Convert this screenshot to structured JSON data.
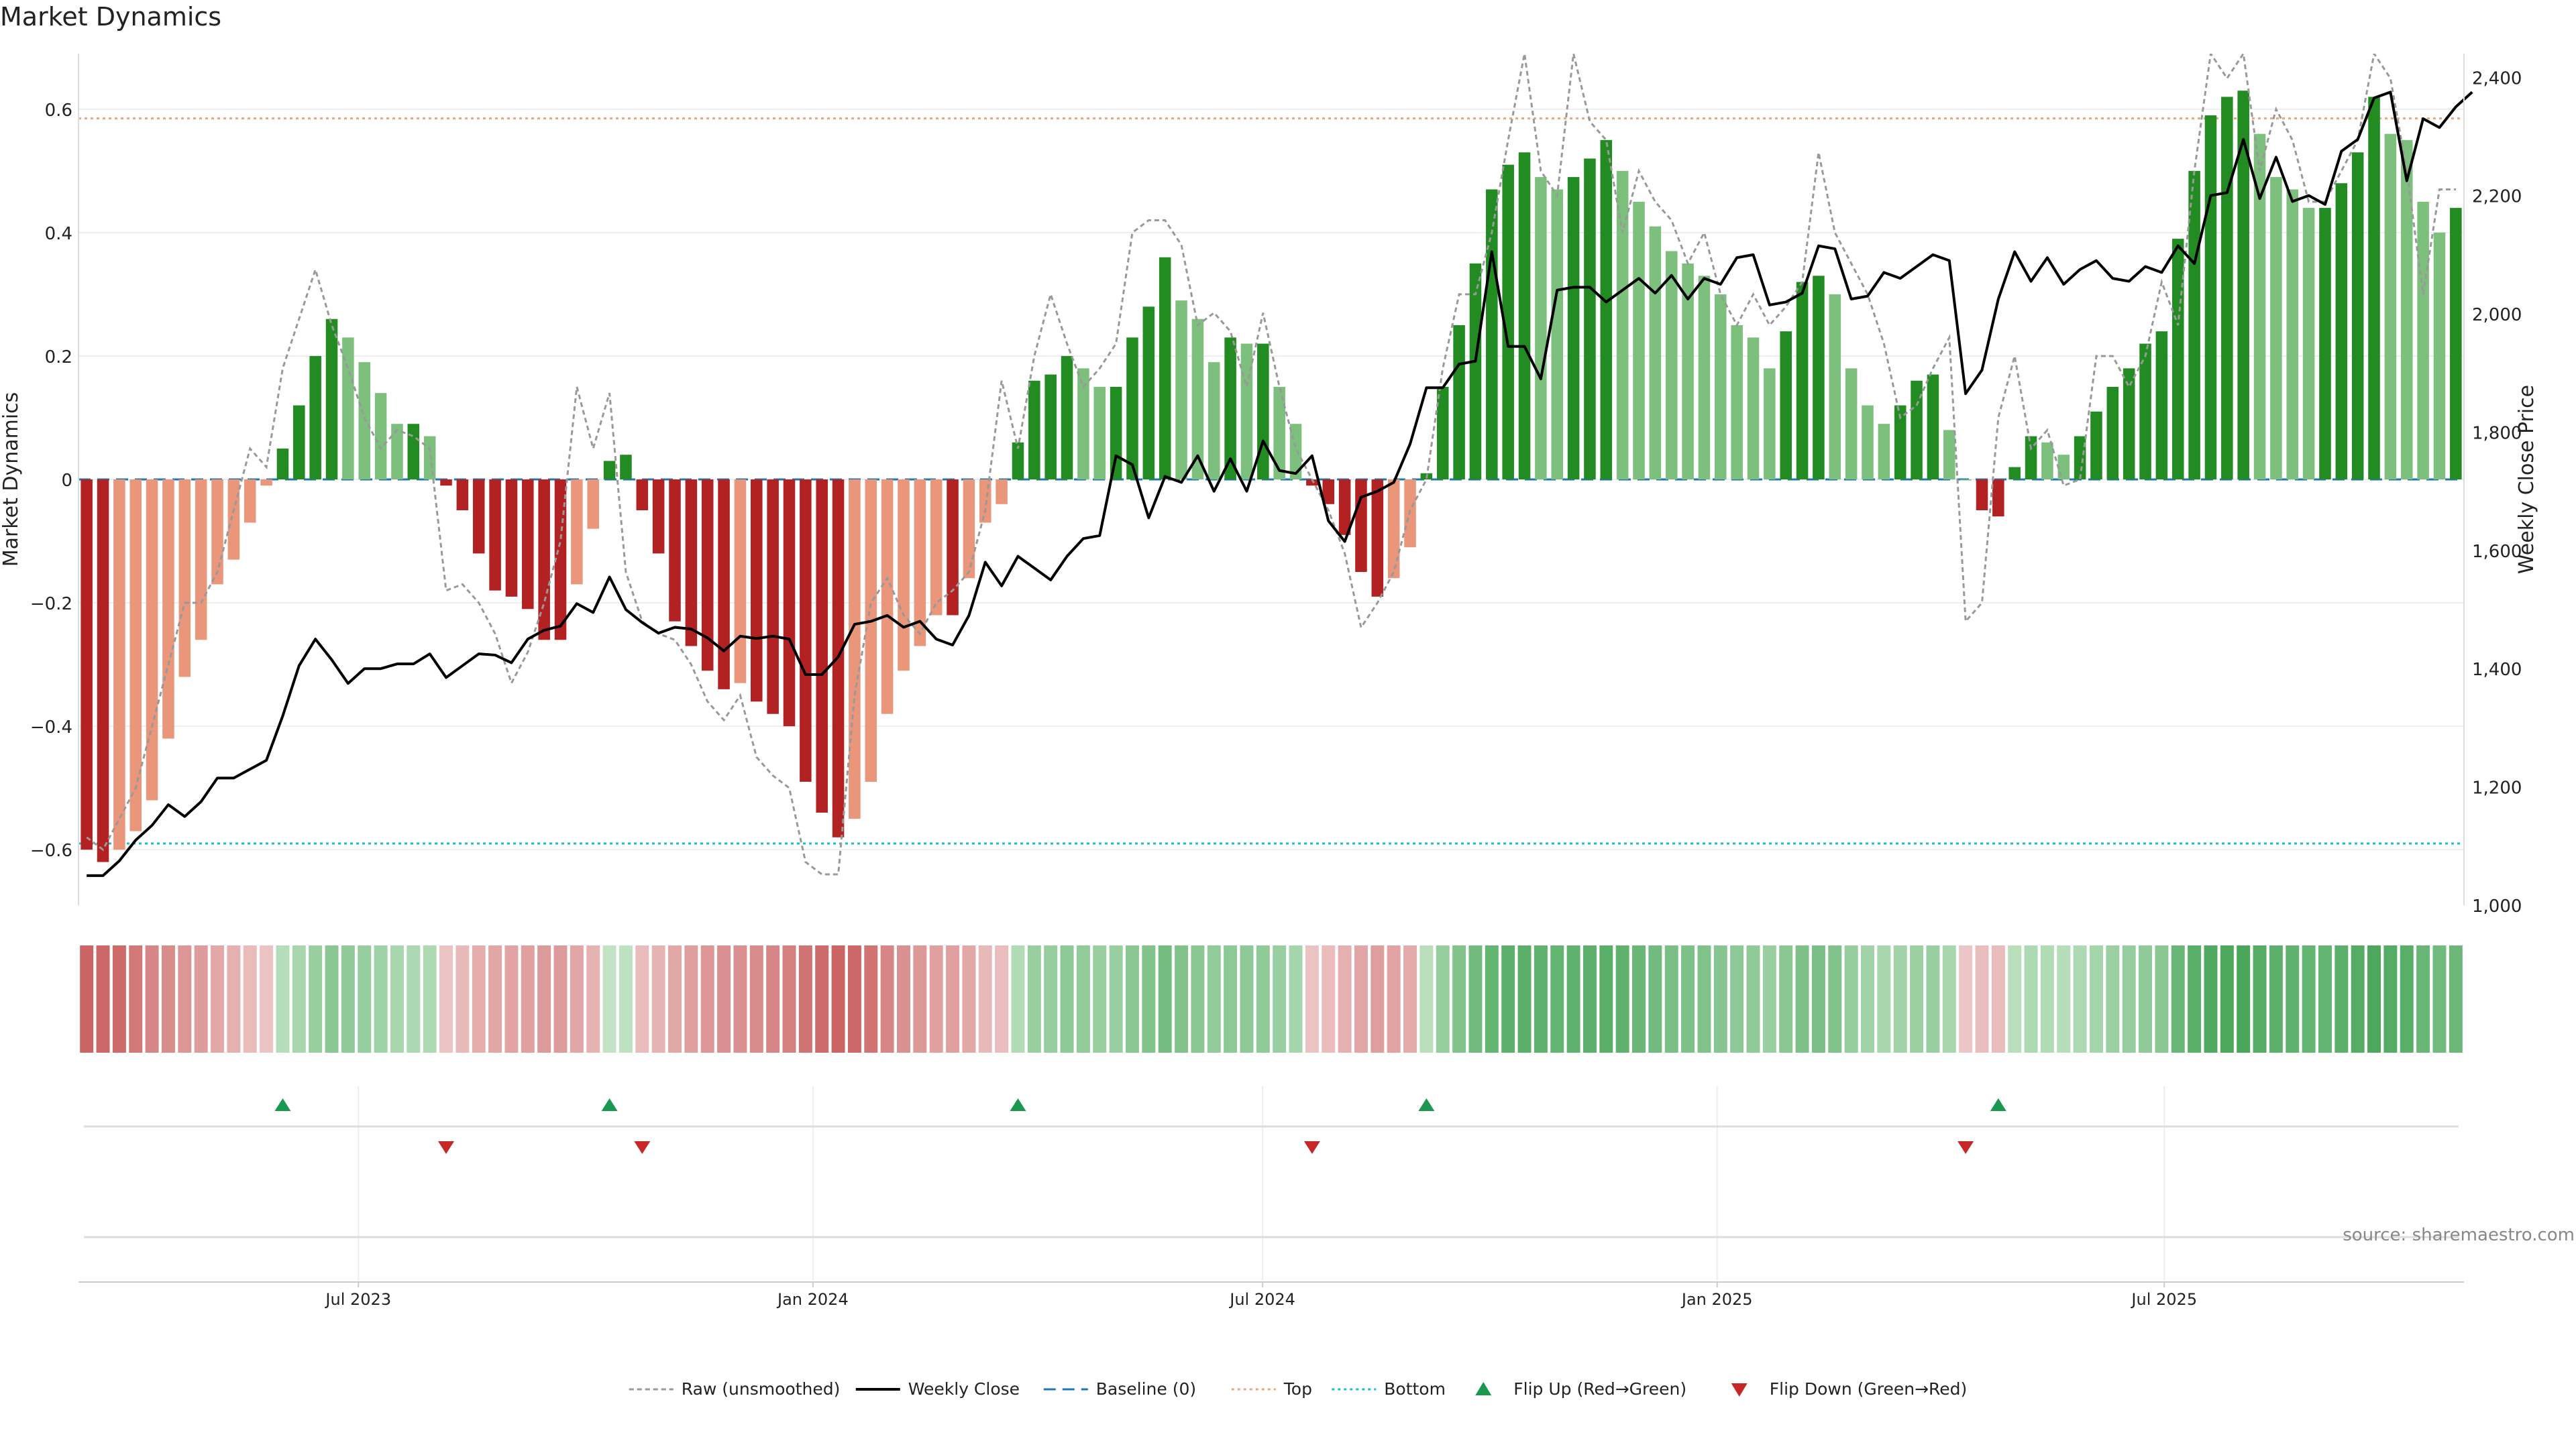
{
  "title": "Market Dynamics",
  "source": "source: sharemaestro.com",
  "colors": {
    "strong_green": "#228b22",
    "light_green": "#7dbf7d",
    "strong_red": "#b22222",
    "light_red": "#e9967a",
    "price_line": "#000000",
    "raw_line": "#999999",
    "baseline": "#1f77b4",
    "top": "#e8a87c",
    "bottom": "#17becf",
    "flip_up": "#1a9850",
    "flip_down": "#c62828"
  },
  "chart_data": {
    "type": "bar",
    "title": "Market Dynamics",
    "ylabel": "Market Dynamics",
    "y2label": "Weekly Close Price",
    "ylim": [
      -0.69,
      0.69
    ],
    "y2lim": [
      1000,
      2440
    ],
    "x_start": "2023-03-13",
    "x_end": "2025-10-27",
    "x_ticks": [
      {
        "label": "Jul 2023",
        "date": "2023-07-01"
      },
      {
        "label": "Jan 2024",
        "date": "2024-01-01"
      },
      {
        "label": "Jul 2024",
        "date": "2024-07-01"
      },
      {
        "label": "Jan 2025",
        "date": "2025-01-01"
      },
      {
        "label": "Jul 2025",
        "date": "2025-07-01"
      }
    ],
    "y_ticks": [
      {
        "v": 0.6,
        "label": "0.6"
      },
      {
        "v": 0.4,
        "label": "0.4"
      },
      {
        "v": 0.2,
        "label": "0.2"
      },
      {
        "v": 0,
        "label": "0"
      },
      {
        "v": -0.2,
        "label": "−0.2"
      },
      {
        "v": -0.4,
        "label": "−0.4"
      },
      {
        "v": -0.6,
        "label": "−0.6"
      }
    ],
    "y2_ticks": [
      {
        "v": 1000,
        "label": "1,000"
      },
      {
        "v": 1200,
        "label": "1,200"
      },
      {
        "v": 1400,
        "label": "1,400"
      },
      {
        "v": 1600,
        "label": "1,600"
      },
      {
        "v": 1800,
        "label": "1,800"
      },
      {
        "v": 2000,
        "label": "2,000"
      },
      {
        "v": 2200,
        "label": "2,200"
      },
      {
        "v": 2400,
        "label": "2,400"
      }
    ],
    "top_level": 0.585,
    "bottom_level": -0.59,
    "market_dynamics": [
      -0.6,
      -0.62,
      -0.6,
      -0.57,
      -0.52,
      -0.42,
      -0.32,
      -0.26,
      -0.17,
      -0.13,
      -0.07,
      -0.01,
      0.05,
      0.12,
      0.2,
      0.26,
      0.23,
      0.19,
      0.14,
      0.09,
      0.09,
      0.07,
      -0.01,
      -0.05,
      -0.12,
      -0.18,
      -0.19,
      -0.21,
      -0.26,
      -0.26,
      -0.17,
      -0.08,
      0.03,
      0.04,
      -0.05,
      -0.12,
      -0.23,
      -0.27,
      -0.31,
      -0.34,
      -0.33,
      -0.36,
      -0.38,
      -0.4,
      -0.49,
      -0.54,
      -0.58,
      -0.55,
      -0.49,
      -0.38,
      -0.31,
      -0.27,
      -0.22,
      -0.22,
      -0.16,
      -0.07,
      -0.04,
      0.06,
      0.16,
      0.17,
      0.2,
      0.18,
      0.15,
      0.15,
      0.23,
      0.28,
      0.36,
      0.29,
      0.26,
      0.19,
      0.23,
      0.22,
      0.22,
      0.15,
      0.09,
      -0.01,
      -0.04,
      -0.09,
      -0.15,
      -0.19,
      -0.16,
      -0.11,
      0.01,
      0.15,
      0.25,
      0.35,
      0.47,
      0.51,
      0.53,
      0.49,
      0.47,
      0.49,
      0.52,
      0.55,
      0.5,
      0.45,
      0.41,
      0.37,
      0.35,
      0.33,
      0.3,
      0.25,
      0.23,
      0.18,
      0.24,
      0.32,
      0.33,
      0.3,
      0.18,
      0.12,
      0.09,
      0.12,
      0.16,
      0.17,
      0.08,
      0.0,
      -0.05,
      -0.06,
      0.02,
      0.07,
      0.06,
      0.04,
      0.07,
      0.11,
      0.15,
      0.18,
      0.22,
      0.24,
      0.39,
      0.5,
      0.59,
      0.62,
      0.63,
      0.56,
      0.49,
      0.47,
      0.44,
      0.44,
      0.48,
      0.53,
      0.62,
      0.56,
      0.55,
      0.45,
      0.4,
      0.44
    ],
    "weekly_close": [
      1050,
      1050,
      1075,
      1110,
      1135,
      1170,
      1150,
      1175,
      1215,
      1215,
      1230,
      1245,
      1320,
      1405,
      1450,
      1415,
      1375,
      1400,
      1400,
      1408,
      1408,
      1425,
      1385,
      1405,
      1425,
      1423,
      1410,
      1450,
      1465,
      1472,
      1510,
      1495,
      1555,
      1500,
      1478,
      1460,
      1470,
      1467,
      1452,
      1430,
      1455,
      1451,
      1455,
      1450,
      1390,
      1390,
      1420,
      1475,
      1480,
      1490,
      1470,
      1480,
      1450,
      1440,
      1490,
      1580,
      1540,
      1590,
      1570,
      1550,
      1590,
      1620,
      1625,
      1760,
      1745,
      1655,
      1725,
      1715,
      1760,
      1700,
      1755,
      1700,
      1785,
      1735,
      1730,
      1760,
      1650,
      1615,
      1690,
      1700,
      1715,
      1780,
      1875,
      1875,
      1915,
      1920,
      2105,
      1945,
      1945,
      1890,
      2040,
      2045,
      2045,
      2020,
      2040,
      2060,
      2035,
      2065,
      2025,
      2060,
      2050,
      2095,
      2100,
      2015,
      2020,
      2035,
      2115,
      2110,
      2025,
      2030,
      2070,
      2060,
      2080,
      2100,
      2090,
      1865,
      1905,
      2025,
      2105,
      2055,
      2095,
      2050,
      2075,
      2090,
      2060,
      2055,
      2080,
      2070,
      2115,
      2085,
      2200,
      2205,
      2295,
      2195,
      2265,
      2190,
      2200,
      2185,
      2275,
      2295,
      2365,
      2375,
      2225,
      2330,
      2315,
      2350,
      2375
    ],
    "raw_unsmoothed": [
      -0.58,
      -0.6,
      -0.55,
      -0.5,
      -0.4,
      -0.3,
      -0.2,
      -0.2,
      -0.15,
      -0.05,
      0.05,
      0.02,
      0.18,
      0.26,
      0.34,
      0.25,
      0.18,
      0.1,
      0.05,
      0.08,
      0.07,
      0.05,
      -0.18,
      -0.17,
      -0.2,
      -0.25,
      -0.33,
      -0.28,
      -0.2,
      -0.1,
      0.15,
      0.05,
      0.14,
      -0.15,
      -0.23,
      -0.25,
      -0.26,
      -0.3,
      -0.36,
      -0.39,
      -0.35,
      -0.45,
      -0.48,
      -0.5,
      -0.62,
      -0.64,
      -0.64,
      -0.35,
      -0.2,
      -0.16,
      -0.22,
      -0.25,
      -0.2,
      -0.18,
      -0.15,
      -0.05,
      0.16,
      0.05,
      0.2,
      0.3,
      0.22,
      0.15,
      0.18,
      0.22,
      0.4,
      0.42,
      0.42,
      0.38,
      0.25,
      0.27,
      0.24,
      0.15,
      0.27,
      0.15,
      0.05,
      0.0,
      -0.05,
      -0.12,
      -0.24,
      -0.2,
      -0.15,
      -0.05,
      0.0,
      0.18,
      0.3,
      0.3,
      0.4,
      0.55,
      0.69,
      0.5,
      0.46,
      0.69,
      0.58,
      0.55,
      0.4,
      0.5,
      0.45,
      0.42,
      0.35,
      0.4,
      0.3,
      0.25,
      0.3,
      0.25,
      0.28,
      0.32,
      0.53,
      0.4,
      0.35,
      0.3,
      0.22,
      0.1,
      0.12,
      0.18,
      0.23,
      -0.23,
      -0.2,
      0.1,
      0.2,
      0.05,
      0.08,
      -0.01,
      0.0,
      0.2,
      0.2,
      0.15,
      0.2,
      0.32,
      0.25,
      0.5,
      0.69,
      0.65,
      0.69,
      0.5,
      0.6,
      0.55,
      0.45,
      0.45,
      0.5,
      0.55,
      0.69,
      0.65,
      0.5,
      0.3,
      0.47,
      0.47
    ],
    "heat_strip": [
      -0.85,
      -0.82,
      -0.8,
      -0.7,
      -0.6,
      -0.55,
      -0.48,
      -0.44,
      -0.35,
      -0.28,
      -0.2,
      -0.14,
      0.22,
      0.3,
      0.4,
      0.5,
      0.46,
      0.42,
      0.36,
      0.3,
      0.28,
      0.26,
      -0.14,
      -0.22,
      -0.3,
      -0.36,
      -0.38,
      -0.4,
      -0.45,
      -0.45,
      -0.36,
      -0.26,
      0.14,
      0.16,
      -0.2,
      -0.26,
      -0.34,
      -0.42,
      -0.48,
      -0.52,
      -0.52,
      -0.56,
      -0.6,
      -0.64,
      -0.74,
      -0.8,
      -0.85,
      -0.82,
      -0.74,
      -0.6,
      -0.52,
      -0.46,
      -0.4,
      -0.4,
      -0.34,
      -0.22,
      -0.18,
      0.25,
      0.4,
      0.42,
      0.48,
      0.45,
      0.4,
      0.4,
      0.5,
      0.55,
      0.64,
      0.56,
      0.5,
      0.45,
      0.48,
      0.47,
      0.46,
      0.4,
      0.32,
      -0.14,
      -0.2,
      -0.28,
      -0.36,
      -0.42,
      -0.38,
      -0.32,
      0.2,
      0.42,
      0.55,
      0.66,
      0.75,
      0.8,
      0.82,
      0.78,
      0.75,
      0.78,
      0.8,
      0.82,
      0.78,
      0.72,
      0.66,
      0.6,
      0.58,
      0.56,
      0.52,
      0.48,
      0.46,
      0.4,
      0.5,
      0.58,
      0.6,
      0.56,
      0.42,
      0.34,
      0.3,
      0.34,
      0.38,
      0.4,
      0.3,
      -0.12,
      -0.18,
      -0.2,
      0.2,
      0.26,
      0.25,
      0.22,
      0.26,
      0.32,
      0.38,
      0.42,
      0.46,
      0.5,
      0.72,
      0.82,
      0.88,
      0.9,
      0.92,
      0.85,
      0.8,
      0.78,
      0.75,
      0.75,
      0.8,
      0.84,
      0.9,
      0.85,
      0.82,
      0.72,
      0.66,
      0.7
    ],
    "flips": [
      {
        "type": "up",
        "index": 12
      },
      {
        "type": "down",
        "index": 22
      },
      {
        "type": "up",
        "index": 32
      },
      {
        "type": "down",
        "index": 34
      },
      {
        "type": "up",
        "index": 57
      },
      {
        "type": "down",
        "index": 75
      },
      {
        "type": "up",
        "index": 82
      },
      {
        "type": "down",
        "index": 115
      },
      {
        "type": "up",
        "index": 117
      }
    ],
    "legend": [
      {
        "key": "raw",
        "label": "Raw (unsmoothed)"
      },
      {
        "key": "close",
        "label": "Weekly Close"
      },
      {
        "key": "baseline",
        "label": "Baseline (0)"
      },
      {
        "key": "top",
        "label": "Top"
      },
      {
        "key": "bottom",
        "label": "Bottom"
      },
      {
        "key": "flip_up",
        "label": "Flip Up (Red→Green)"
      },
      {
        "key": "flip_down",
        "label": "Flip Down (Green→Red)"
      }
    ]
  }
}
